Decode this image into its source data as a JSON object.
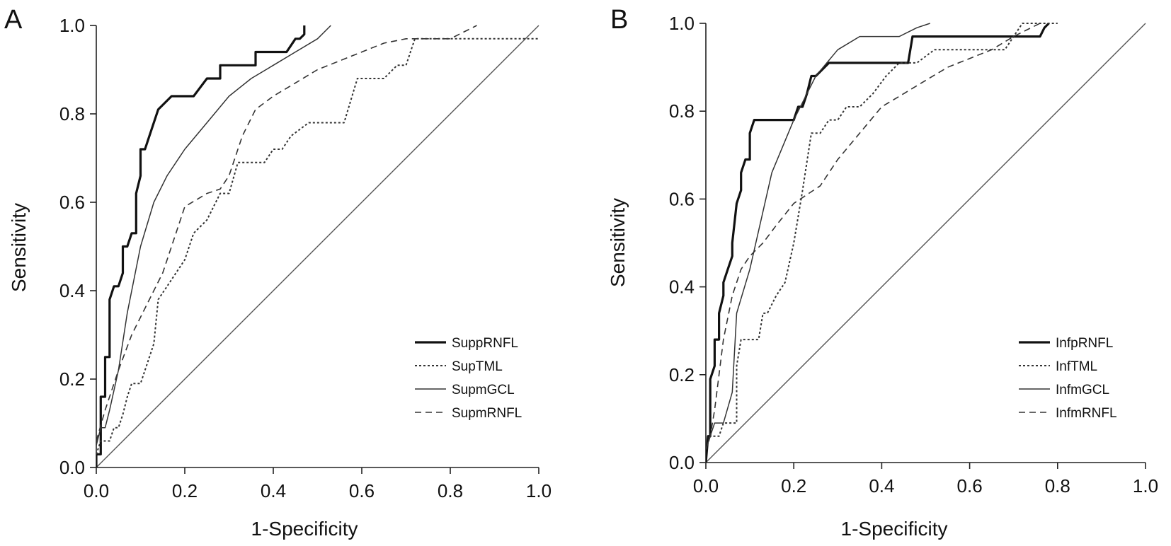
{
  "colors": {
    "ink": "#111111",
    "thin_line": "#333333",
    "diagonal": "#555555"
  },
  "chart_data": [
    {
      "type": "line",
      "panel": "A",
      "title": "",
      "xlabel": "1-Specificity",
      "ylabel": "Sensitivity",
      "xlim": [
        0,
        1
      ],
      "ylim": [
        0,
        1
      ],
      "xticks": [
        "0.0",
        "0.2",
        "0.4",
        "0.6",
        "0.8",
        "1.0"
      ],
      "yticks": [
        "0.0",
        "0.2",
        "0.4",
        "0.6",
        "0.8",
        "1.0"
      ],
      "grid": false,
      "legend_position": "bottom-right",
      "reference_line": {
        "x": [
          0,
          1
        ],
        "y": [
          0,
          1
        ]
      },
      "series": [
        {
          "name": "SuppRNFL",
          "style": "bold-solid",
          "x": [
            0,
            0,
            0.01,
            0.01,
            0.02,
            0.02,
            0.03,
            0.03,
            0.04,
            0.05,
            0.06,
            0.06,
            0.07,
            0.08,
            0.09,
            0.09,
            0.1,
            0.1,
            0.11,
            0.12,
            0.14,
            0.17,
            0.22,
            0.25,
            0.28,
            0.28,
            0.31,
            0.36,
            0.36,
            0.4,
            0.43,
            0.45,
            0.46,
            0.47,
            0.47
          ],
          "y": [
            0,
            0.03,
            0.03,
            0.16,
            0.16,
            0.25,
            0.25,
            0.38,
            0.41,
            0.41,
            0.44,
            0.5,
            0.5,
            0.53,
            0.53,
            0.62,
            0.66,
            0.72,
            0.72,
            0.75,
            0.81,
            0.84,
            0.84,
            0.88,
            0.88,
            0.91,
            0.91,
            0.91,
            0.94,
            0.94,
            0.94,
            0.97,
            0.97,
            0.98,
            1.0
          ]
        },
        {
          "name": "SupTML",
          "style": "dotted",
          "x": [
            0,
            0.01,
            0.03,
            0.04,
            0.05,
            0.06,
            0.07,
            0.08,
            0.1,
            0.11,
            0.13,
            0.14,
            0.16,
            0.18,
            0.2,
            0.22,
            0.25,
            0.28,
            0.3,
            0.32,
            0.35,
            0.38,
            0.4,
            0.42,
            0.44,
            0.48,
            0.5,
            0.53,
            0.56,
            0.59,
            0.62,
            0.65,
            0.68,
            0.7,
            0.72,
            0.8,
            0.9,
            1.0
          ],
          "y": [
            0.03,
            0.06,
            0.06,
            0.09,
            0.09,
            0.12,
            0.16,
            0.19,
            0.19,
            0.22,
            0.28,
            0.38,
            0.41,
            0.44,
            0.47,
            0.53,
            0.56,
            0.62,
            0.62,
            0.69,
            0.69,
            0.69,
            0.72,
            0.72,
            0.75,
            0.78,
            0.78,
            0.78,
            0.78,
            0.88,
            0.88,
            0.88,
            0.91,
            0.91,
            0.97,
            0.97,
            0.97,
            0.97
          ]
        },
        {
          "name": "SupmGCL",
          "style": "solid",
          "x": [
            0,
            0.01,
            0.02,
            0.03,
            0.05,
            0.07,
            0.1,
            0.13,
            0.16,
            0.2,
            0.25,
            0.3,
            0.35,
            0.4,
            0.45,
            0.5,
            0.53
          ],
          "y": [
            0.05,
            0.09,
            0.09,
            0.13,
            0.22,
            0.35,
            0.5,
            0.6,
            0.66,
            0.72,
            0.78,
            0.84,
            0.88,
            0.91,
            0.94,
            0.97,
            1.0
          ]
        },
        {
          "name": "SupmRNFL",
          "style": "dashed",
          "x": [
            0,
            0.02,
            0.05,
            0.08,
            0.1,
            0.12,
            0.15,
            0.17,
            0.2,
            0.25,
            0.28,
            0.3,
            0.33,
            0.36,
            0.4,
            0.45,
            0.5,
            0.55,
            0.6,
            0.65,
            0.7,
            0.72,
            0.8,
            0.86
          ],
          "y": [
            0.06,
            0.13,
            0.22,
            0.3,
            0.34,
            0.38,
            0.44,
            0.5,
            0.59,
            0.62,
            0.63,
            0.66,
            0.75,
            0.81,
            0.84,
            0.87,
            0.9,
            0.92,
            0.94,
            0.96,
            0.97,
            0.97,
            0.97,
            1.0
          ]
        }
      ],
      "legend": [
        "SuppRNFL",
        "SupTML",
        "SupmGCL",
        "SupmRNFL"
      ]
    },
    {
      "type": "line",
      "panel": "B",
      "title": "",
      "xlabel": "1-Specificity",
      "ylabel": "Sensitivity",
      "xlim": [
        0,
        1
      ],
      "ylim": [
        0,
        1
      ],
      "xticks": [
        "0.0",
        "0.2",
        "0.4",
        "0.6",
        "0.8",
        "1.0"
      ],
      "yticks": [
        "0.0",
        "0.2",
        "0.4",
        "0.6",
        "0.8",
        "1.0"
      ],
      "grid": false,
      "legend_position": "bottom-right",
      "reference_line": {
        "x": [
          0,
          1
        ],
        "y": [
          0,
          1
        ]
      },
      "series": [
        {
          "name": "InfpRNFL",
          "style": "bold-solid",
          "x": [
            0,
            0.005,
            0.01,
            0.01,
            0.02,
            0.02,
            0.03,
            0.03,
            0.04,
            0.04,
            0.05,
            0.06,
            0.06,
            0.07,
            0.08,
            0.08,
            0.09,
            0.09,
            0.1,
            0.1,
            0.11,
            0.12,
            0.13,
            0.2,
            0.21,
            0.22,
            0.23,
            0.24,
            0.25,
            0.28,
            0.3,
            0.46,
            0.47,
            0.76,
            0.77,
            0.78
          ],
          "y": [
            0,
            0.06,
            0.06,
            0.19,
            0.22,
            0.28,
            0.28,
            0.34,
            0.38,
            0.41,
            0.44,
            0.47,
            0.5,
            0.59,
            0.62,
            0.66,
            0.69,
            0.69,
            0.69,
            0.75,
            0.78,
            0.78,
            0.78,
            0.78,
            0.81,
            0.81,
            0.84,
            0.88,
            0.88,
            0.91,
            0.91,
            0.91,
            0.97,
            0.97,
            0.99,
            1.0
          ]
        },
        {
          "name": "InfTML",
          "style": "dotted",
          "x": [
            0,
            0.01,
            0.02,
            0.03,
            0.04,
            0.05,
            0.06,
            0.07,
            0.07,
            0.08,
            0.09,
            0.1,
            0.12,
            0.13,
            0.14,
            0.16,
            0.18,
            0.2,
            0.22,
            0.24,
            0.26,
            0.28,
            0.3,
            0.32,
            0.35,
            0.38,
            0.41,
            0.44,
            0.48,
            0.52,
            0.56,
            0.6,
            0.64,
            0.68,
            0.7,
            0.72,
            0.75,
            0.78,
            0.8
          ],
          "y": [
            0.03,
            0.06,
            0.06,
            0.06,
            0.09,
            0.09,
            0.09,
            0.09,
            0.22,
            0.28,
            0.28,
            0.28,
            0.28,
            0.34,
            0.34,
            0.38,
            0.41,
            0.5,
            0.62,
            0.75,
            0.75,
            0.78,
            0.78,
            0.81,
            0.81,
            0.84,
            0.88,
            0.91,
            0.91,
            0.94,
            0.94,
            0.94,
            0.94,
            0.94,
            0.97,
            1.0,
            1.0,
            1.0,
            1.0
          ]
        },
        {
          "name": "InfmGCL",
          "style": "solid",
          "x": [
            0,
            0.01,
            0.02,
            0.04,
            0.06,
            0.07,
            0.1,
            0.15,
            0.2,
            0.25,
            0.3,
            0.35,
            0.4,
            0.44,
            0.48,
            0.51
          ],
          "y": [
            0.03,
            0.06,
            0.09,
            0.09,
            0.16,
            0.34,
            0.44,
            0.66,
            0.78,
            0.88,
            0.94,
            0.97,
            0.97,
            0.97,
            0.99,
            1.0
          ]
        },
        {
          "name": "InfmRNFL",
          "style": "dashed",
          "x": [
            0,
            0.01,
            0.02,
            0.03,
            0.04,
            0.06,
            0.08,
            0.1,
            0.13,
            0.16,
            0.2,
            0.23,
            0.26,
            0.3,
            0.35,
            0.4,
            0.45,
            0.5,
            0.55,
            0.6,
            0.65,
            0.7,
            0.72,
            0.74,
            0.76
          ],
          "y": [
            0.03,
            0.06,
            0.12,
            0.2,
            0.28,
            0.38,
            0.44,
            0.47,
            0.5,
            0.54,
            0.59,
            0.61,
            0.63,
            0.69,
            0.75,
            0.81,
            0.84,
            0.87,
            0.9,
            0.92,
            0.94,
            0.97,
            0.98,
            0.99,
            1.0
          ]
        }
      ],
      "legend": [
        "InfpRNFL",
        "InfTML",
        "InfmGCL",
        "InfmRNFL"
      ]
    }
  ]
}
